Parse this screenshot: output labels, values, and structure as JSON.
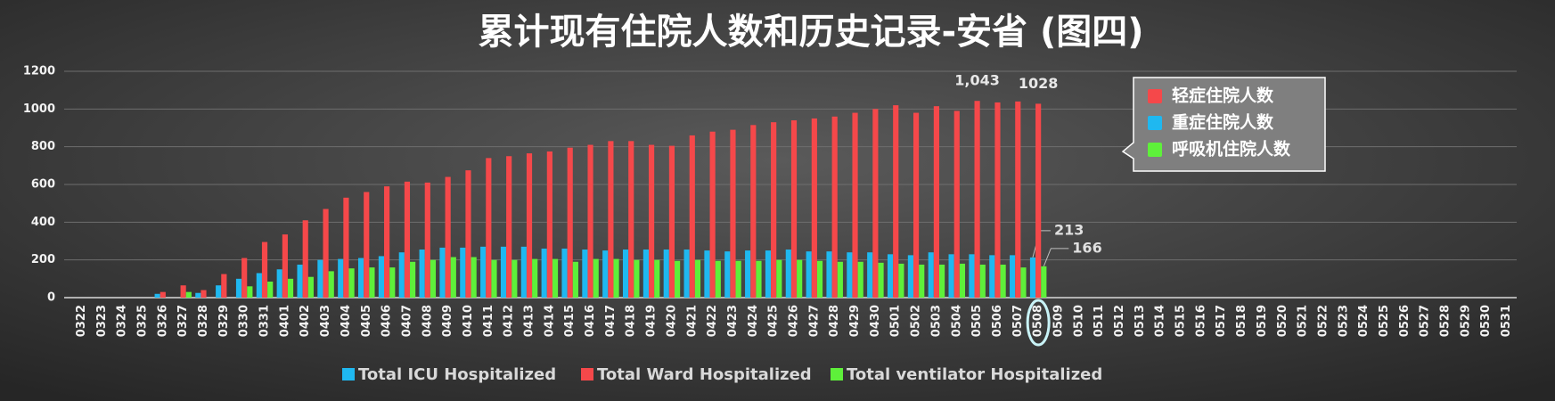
{
  "chart_data": {
    "type": "bar",
    "title": "累计现有住院人数和历史记录-安省 (图四)",
    "categories": [
      "0322",
      "0323",
      "0324",
      "0325",
      "0326",
      "0327",
      "0328",
      "0329",
      "0330",
      "0331",
      "0401",
      "0402",
      "0403",
      "0404",
      "0405",
      "0406",
      "0407",
      "0408",
      "0409",
      "0410",
      "0411",
      "0412",
      "0413",
      "0414",
      "0415",
      "0416",
      "0417",
      "0418",
      "0419",
      "0420",
      "0421",
      "0422",
      "0423",
      "0424",
      "0425",
      "0426",
      "0427",
      "0428",
      "0429",
      "0430",
      "0501",
      "0502",
      "0503",
      "0504",
      "0505",
      "0506",
      "0507",
      "0508",
      "0509",
      "0510",
      "0511",
      "0512",
      "0513",
      "0514",
      "0515",
      "0516",
      "0517",
      "0518",
      "0519",
      "0520",
      "0521",
      "0522",
      "0523",
      "0524",
      "0525",
      "0526",
      "0527",
      "0528",
      "0529",
      "0530",
      "0531"
    ],
    "series": [
      {
        "name": "Total ICU Hospitalized",
        "color": "#1fb8f0",
        "values": [
          0,
          0,
          0,
          0,
          20,
          0,
          25,
          65,
          100,
          130,
          150,
          175,
          200,
          205,
          210,
          220,
          240,
          255,
          265,
          265,
          270,
          270,
          270,
          260,
          260,
          255,
          250,
          255,
          255,
          255,
          255,
          250,
          245,
          250,
          250,
          255,
          245,
          245,
          240,
          240,
          230,
          225,
          240,
          230,
          230,
          225,
          225,
          213,
          null,
          null,
          null,
          null,
          null,
          null,
          null,
          null,
          null,
          null,
          null,
          null,
          null,
          null,
          null,
          null,
          null,
          null,
          null,
          null,
          null,
          null,
          null
        ],
        "value_labels": [
          null,
          null,
          null,
          null,
          null,
          null,
          null,
          null,
          null,
          null,
          null,
          null,
          null,
          null,
          null,
          null,
          null,
          null,
          null,
          null,
          null,
          null,
          null,
          null,
          null,
          null,
          null,
          null,
          null,
          null,
          null,
          null,
          null,
          null,
          null,
          null,
          null,
          null,
          null,
          null,
          null,
          null,
          null,
          null,
          null,
          null,
          null,
          "213",
          null,
          null,
          null,
          null,
          null,
          null,
          null,
          null,
          null,
          null,
          null,
          null,
          null,
          null,
          null,
          null,
          null,
          null,
          null,
          null,
          null,
          null,
          null
        ]
      },
      {
        "name": "Total Ward Hospitalized",
        "color": "#f5484a",
        "values": [
          0,
          0,
          0,
          0,
          30,
          65,
          40,
          125,
          210,
          295,
          335,
          410,
          470,
          530,
          560,
          590,
          615,
          610,
          640,
          675,
          740,
          750,
          765,
          775,
          795,
          810,
          830,
          830,
          810,
          805,
          860,
          880,
          890,
          915,
          930,
          940,
          950,
          960,
          980,
          1000,
          1020,
          980,
          1015,
          990,
          1043,
          1035,
          1040,
          1028,
          null,
          null,
          null,
          null,
          null,
          null,
          null,
          null,
          null,
          null,
          null,
          null,
          null,
          null,
          null,
          null,
          null,
          null,
          null,
          null,
          null,
          null,
          null
        ],
        "value_labels": [
          null,
          null,
          null,
          null,
          null,
          null,
          null,
          null,
          null,
          null,
          null,
          null,
          null,
          null,
          null,
          null,
          null,
          null,
          null,
          null,
          null,
          null,
          null,
          null,
          null,
          null,
          null,
          null,
          null,
          null,
          null,
          null,
          null,
          null,
          null,
          null,
          null,
          null,
          null,
          null,
          null,
          null,
          null,
          null,
          "1,043",
          null,
          null,
          "1028",
          null,
          null,
          null,
          null,
          null,
          null,
          null,
          null,
          null,
          null,
          null,
          null,
          null,
          null,
          null,
          null,
          null,
          null,
          null,
          null,
          null,
          null,
          null
        ]
      },
      {
        "name": "Total ventilator Hospitalized",
        "color": "#5ef03a",
        "values": [
          0,
          0,
          0,
          0,
          0,
          30,
          0,
          0,
          60,
          85,
          100,
          110,
          140,
          155,
          160,
          160,
          190,
          200,
          215,
          215,
          200,
          200,
          205,
          205,
          190,
          205,
          205,
          200,
          200,
          195,
          200,
          195,
          195,
          195,
          200,
          200,
          195,
          190,
          190,
          185,
          180,
          175,
          175,
          180,
          175,
          175,
          160,
          166,
          null,
          null,
          null,
          null,
          null,
          null,
          null,
          null,
          null,
          null,
          null,
          null,
          null,
          null,
          null,
          null,
          null,
          null,
          null,
          null,
          null,
          null,
          null
        ],
        "value_labels": [
          null,
          null,
          null,
          null,
          null,
          null,
          null,
          null,
          null,
          null,
          null,
          null,
          null,
          null,
          null,
          null,
          null,
          null,
          null,
          null,
          null,
          null,
          null,
          null,
          null,
          null,
          null,
          null,
          null,
          null,
          null,
          null,
          null,
          null,
          null,
          null,
          null,
          null,
          null,
          null,
          null,
          null,
          null,
          null,
          null,
          null,
          null,
          "166",
          null,
          null,
          null,
          null,
          null,
          null,
          null,
          null,
          null,
          null,
          null,
          null,
          null,
          null,
          null,
          null,
          null,
          null,
          null,
          null,
          null,
          null,
          null
        ]
      }
    ],
    "ylim": [
      0,
      1200
    ],
    "yticks": [
      0,
      200,
      400,
      600,
      800,
      1000,
      1200
    ],
    "grid": true,
    "legend2": [
      {
        "label": "轻症住院人数",
        "color": "#f5484a"
      },
      {
        "label": "重症住院人数",
        "color": "#1fb8f0"
      },
      {
        "label": "呼吸机住院人数",
        "color": "#5ef03a"
      }
    ]
  }
}
